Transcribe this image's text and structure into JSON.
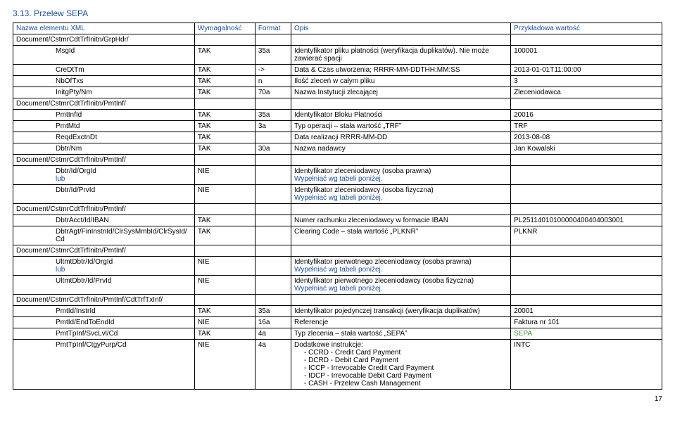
{
  "section_title": "3.13. Przelew SEPA",
  "header": {
    "name": "Nazwa elementu XML",
    "req": "Wymagalność",
    "fmt": "Format",
    "desc": "Opis",
    "val": "Przykładowa wartość"
  },
  "rows": [
    {
      "name": "Document/CstmrCdtTrfInitn/GrpHdr/",
      "indent": 0,
      "req": "",
      "fmt": "",
      "desc": "",
      "val": ""
    },
    {
      "name": "MsgId",
      "indent": 2,
      "req": "TAK",
      "fmt": "35a",
      "desc": "Identyfikator pliku płatności (weryfikacja duplikatów). Nie może zawierać spacji",
      "val": "100001"
    },
    {
      "name": "CreDtTm",
      "indent": 2,
      "req": "TAK",
      "fmt": "->",
      "desc": "Data & Czas utworzenia; RRRR-MM-DDTHH:MM:SS",
      "val": "2013-01-01T11:00:00"
    },
    {
      "name": "NbOfTxs",
      "indent": 2,
      "req": "TAK",
      "fmt": "n",
      "desc": "Ilość zleceń w całym pliku",
      "val": "3"
    },
    {
      "name": "InitgPty/Nm",
      "indent": 2,
      "req": "TAK",
      "fmt": "70a",
      "desc": "Nazwa Instytucji zlecającej",
      "val": "Zleceniodawca"
    },
    {
      "name": "Document/CstmrCdtTrfInitn/PmtInf/",
      "indent": 0,
      "req": "",
      "fmt": "",
      "desc": "",
      "val": ""
    },
    {
      "name": "PmtInfId",
      "indent": 2,
      "req": "TAK",
      "fmt": "35a",
      "desc": "Identyfikator Bloku Płatności",
      "val": "20016"
    },
    {
      "name": "PmtMtd",
      "indent": 2,
      "req": "TAK",
      "fmt": "3a",
      "desc": "Typ operacji – stała wartość „TRF”",
      "val": "TRF"
    },
    {
      "name": "ReqdExctnDt",
      "indent": 2,
      "req": "TAK",
      "fmt": "",
      "desc": "Data realizacji RRRR-MM-DD",
      "val": "2013-08-08"
    },
    {
      "name": "Dbtr/Nm",
      "indent": 2,
      "req": "TAK",
      "fmt": "30a",
      "desc": "Nazwa nadawcy",
      "val": "Jan Kowalski"
    },
    {
      "name": "Document/CstmrCdtTrfInitn/PmtInf/",
      "indent": 0,
      "req": "",
      "fmt": "",
      "desc": "",
      "val": ""
    },
    {
      "name": "Dbtr/Id/OrgId",
      "indent": 2,
      "req": "NIE",
      "fmt": "",
      "desc": "Identyfikator zleceniodawcy (osoba prawna)",
      "val": "",
      "extra_name": "lub",
      "extra_blue": "Wypełniać wg tabeli poniżej."
    },
    {
      "name": "Dbtr/Id/PrvId",
      "indent": 2,
      "req": "NIE",
      "fmt": "",
      "desc": "Identyfikator zleceniodawcy (osoba fizyczna)",
      "val": "",
      "extra_blue": "Wypełniać wg tabeli poniżej."
    },
    {
      "name": "Document/CstmrCdtTrfInitn/PmtInf/",
      "indent": 0,
      "req": "",
      "fmt": "",
      "desc": "",
      "val": ""
    },
    {
      "name": "DbtrAcct/Id/IBAN",
      "indent": 2,
      "req": "TAK",
      "fmt": "",
      "desc": "Numer rachunku zleceniodawcy w formacie IBAN",
      "val": "PL25114010100000400404003001"
    },
    {
      "name": "DbtrAgt/FinInstnId/ClrSysMmbId/ClrSysId/Cd",
      "indent": 2,
      "req": "TAK",
      "fmt": "",
      "desc": "Clearing Code – stała wartość „PLKNR”",
      "val": "PLKNR"
    },
    {
      "name": "Document/CstmrCdtTrfInitn/PmtInf/",
      "indent": 0,
      "req": "",
      "fmt": "",
      "desc": "",
      "val": ""
    },
    {
      "name": "UltmtDbtr/Id/OrgId",
      "indent": 2,
      "req": "NIE",
      "fmt": "",
      "desc": "Identyfikator pierwotnego zleceniodawcy (osoba prawna)",
      "val": "",
      "extra_name": "lub",
      "extra_blue": "Wypełniać wg tabeli poniżej."
    },
    {
      "name": "UltmtDbtr/Id/PrvId",
      "indent": 2,
      "req": "NIE",
      "fmt": "",
      "desc": "Identyfikator pierwotnego zleceniodawcy (osoba fizyczna)",
      "val": "",
      "extra_blue": "Wypełniać wg tabeli poniżej."
    },
    {
      "name": "Document/CstmrCdtTrfInitn/PmtInf/CdtTrfTxInf/",
      "indent": 0,
      "req": "",
      "fmt": "",
      "desc": "",
      "val": ""
    },
    {
      "name": "PmtId/InstrId",
      "indent": 2,
      "req": "TAK",
      "fmt": "35a",
      "desc": "Identyfikator pojedynczej transakcji (weryfikacja duplikatów)",
      "val": "20001"
    },
    {
      "name": "PmtId/EndToEndId",
      "indent": 2,
      "req": "NIE",
      "fmt": "16a",
      "desc": "Referencje",
      "val": "Faktura nr 101"
    },
    {
      "name": "PmtTpInf/SvcLvl/Cd",
      "indent": 2,
      "req": "TAK",
      "fmt": "4a",
      "desc": "Typ zlecenia – stała wartość „SEPA”",
      "val": "SEPA",
      "val_green": true
    },
    {
      "name": "PmtTpInf/CtgyPurp/Cd",
      "indent": 2,
      "req": "NIE",
      "fmt": "4a",
      "desc": "Dodatkowe instrukcje:",
      "val": "INTC",
      "list": [
        "CCRD - Credit Card Payment",
        "DCRD - Debit Card Payment",
        "ICCP - Irrevocable Credit Card Payment",
        "IDCP - Irrevocable Debit Card Payment",
        "CASH - Przelew Cash Management"
      ]
    }
  ],
  "page_number": "17"
}
